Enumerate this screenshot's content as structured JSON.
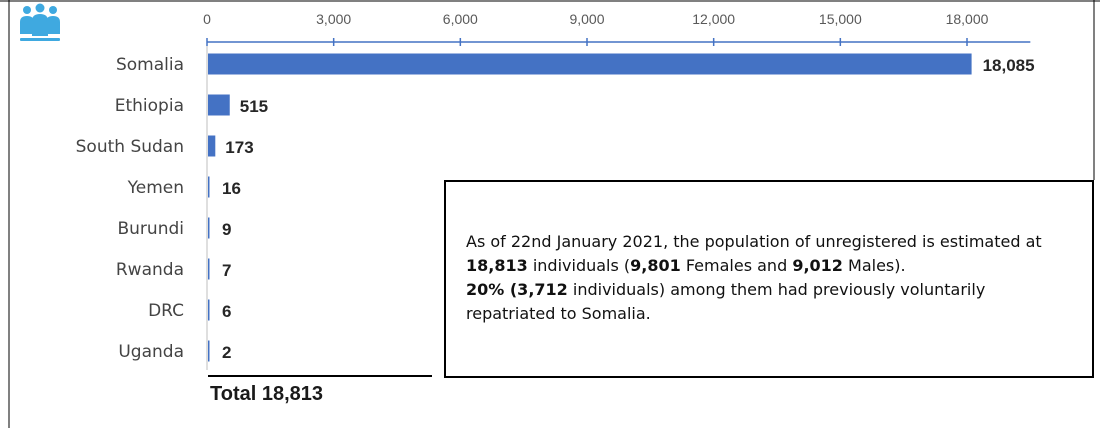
{
  "chart_data": {
    "type": "bar",
    "orientation": "horizontal",
    "categories": [
      "Somalia",
      "Ethiopia",
      "South Sudan",
      "Yemen",
      "Burundi",
      "Rwanda",
      "DRC",
      "Uganda"
    ],
    "values": [
      18085,
      515,
      173,
      16,
      9,
      7,
      6,
      2
    ],
    "value_labels": [
      "18,085",
      "515",
      "173",
      "16",
      "9",
      "7",
      "6",
      "2"
    ],
    "xlim": [
      0,
      19500
    ],
    "xticks": [
      0,
      3000,
      6000,
      9000,
      12000,
      15000,
      18000
    ],
    "xtick_labels": [
      "0",
      "3,000",
      "6,000",
      "9,000",
      "12,000",
      "15,000",
      "18,000"
    ],
    "x_axis_position": "top",
    "grid": false,
    "legend": "none",
    "bar_color": "#4472C4",
    "title": "",
    "xlabel": "",
    "ylabel": ""
  },
  "total_label": "Total 18,813",
  "icon": {
    "name": "people-icon",
    "color": "#3FA9E0"
  },
  "note": {
    "line1": {
      "t1": "As of 22nd January 2021, the population of unregistered is estimated at ",
      "b1": "18,813",
      "t2": " individuals (",
      "b2": "9,801",
      "t3": " Females and ",
      "b3": "9,012",
      "t4": " Males)."
    },
    "line2": {
      "b1": "20% (3,712",
      "t1": " individuals) among them had previously voluntarily repatriated to Somalia."
    }
  }
}
